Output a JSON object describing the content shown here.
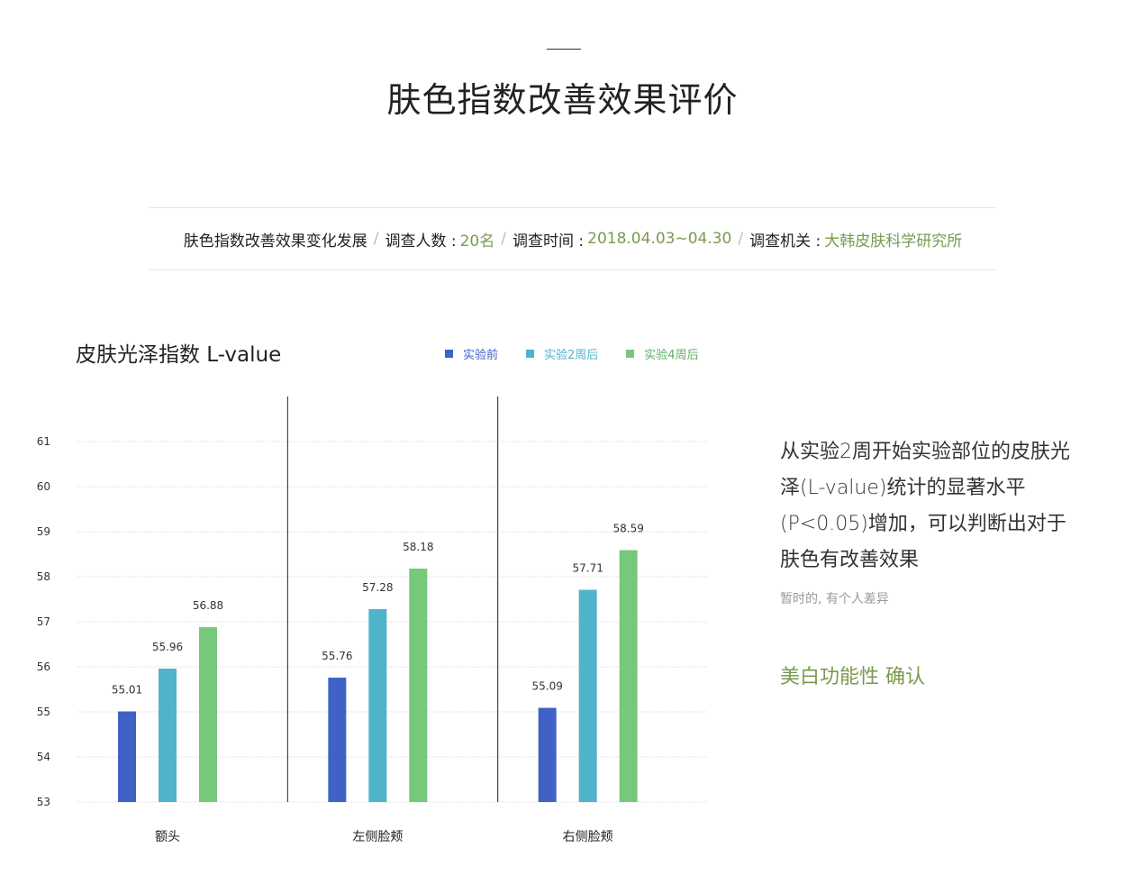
{
  "header": {
    "title": "肤色指数改善效果评价"
  },
  "info": {
    "subject": "肤色指数改善效果变化发展",
    "participants_label": "调查人数 :",
    "participants_value": "20名",
    "period_label": "调查时间 :",
    "period_value": "2018.04.03~04.30",
    "org_label": "调查机关 :",
    "org_value": "大韩皮肤科学研究所",
    "separator": "/"
  },
  "chart_data": {
    "type": "bar",
    "title": "皮肤光泽指数 L-value",
    "categories": [
      "额头",
      "左侧脸颊",
      "右侧脸颊"
    ],
    "series": [
      {
        "name": "实验前",
        "color": "#4062c6",
        "values": [
          55.01,
          55.76,
          55.09
        ],
        "labels": [
          "55.01",
          "55.76",
          "55.09"
        ]
      },
      {
        "name": "实验2周后",
        "color": "#4fb4c9",
        "values": [
          55.96,
          57.28,
          57.71
        ],
        "labels": [
          "55.96",
          "57.28",
          "57.71"
        ]
      },
      {
        "name": "实验4周后",
        "color": "#76c87b",
        "values": [
          56.88,
          58.18,
          58.59
        ],
        "labels": [
          "56.88",
          "58.18",
          "58.59"
        ]
      }
    ],
    "ylim": [
      53,
      61
    ],
    "yticks": [
      53,
      54,
      55,
      56,
      57,
      58,
      59,
      60,
      61
    ],
    "grid": true,
    "legend": "top-right"
  },
  "side": {
    "description": "从实验2周开始实验部位的皮肤光泽(L-value)统计的显著水平(P<0.05)增加，可以判断出对于肤色有改善效果",
    "note": "暂时的, 有个人差异",
    "highlight": "美白功能性 确认"
  }
}
